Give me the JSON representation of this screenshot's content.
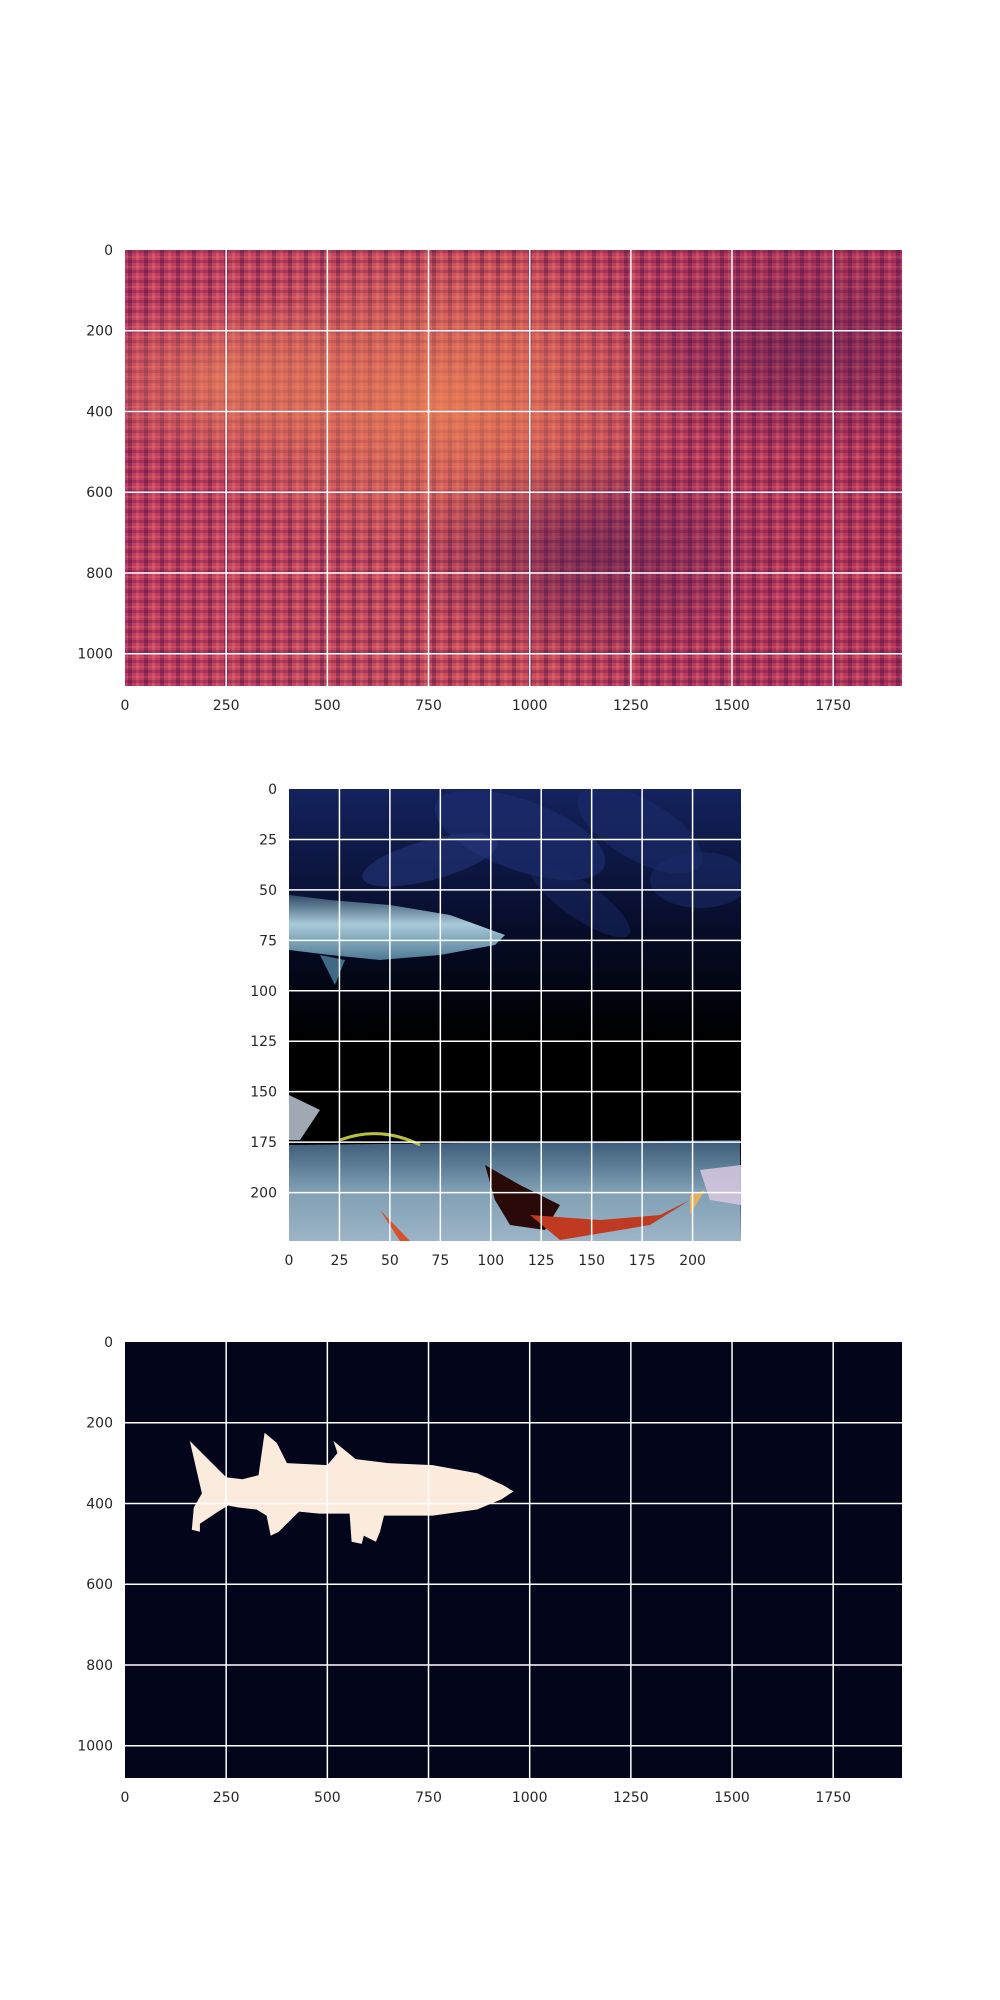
{
  "chart_data": [
    {
      "type": "heatmap",
      "title": "",
      "xlabel": "",
      "ylabel": "",
      "image_width": 1920,
      "image_height": 1080,
      "xlim": [
        0,
        1920
      ],
      "ylim": [
        1080,
        0
      ],
      "x_ticks": [
        0,
        250,
        500,
        750,
        1000,
        1250,
        1500,
        1750
      ],
      "y_ticks": [
        0,
        200,
        400,
        600,
        800,
        1000
      ],
      "x_tick_labels": [
        "0",
        "250",
        "500",
        "750",
        "1000",
        "1250",
        "1500",
        "1750"
      ],
      "y_tick_labels": [
        "0",
        "200",
        "400",
        "600",
        "800",
        "1000"
      ],
      "grid": true,
      "colormap": "rocket",
      "base_color": "#b8315e",
      "dark_color": "#5a1d52",
      "bright_color": "#f0a050"
    },
    {
      "type": "heatmap",
      "title": "",
      "xlabel": "",
      "ylabel": "",
      "image_width": 224,
      "image_height": 224,
      "xlim": [
        0,
        224
      ],
      "ylim": [
        224,
        0
      ],
      "x_ticks": [
        0,
        25,
        50,
        75,
        100,
        125,
        150,
        175,
        200
      ],
      "y_ticks": [
        0,
        25,
        50,
        75,
        100,
        125,
        150,
        175,
        200
      ],
      "x_tick_labels": [
        "0",
        "25",
        "50",
        "75",
        "100",
        "125",
        "150",
        "175",
        "200"
      ],
      "y_tick_labels": [
        "0",
        "25",
        "50",
        "75",
        "100",
        "125",
        "150",
        "175",
        "200"
      ],
      "grid": true,
      "colors": {
        "water_top": "#0d1a4a",
        "water_dark": "#000000",
        "fish_body": "#8fb8c8",
        "seabed": "#7f98a8",
        "red_fish": "#b8302a"
      }
    },
    {
      "type": "heatmap",
      "title": "",
      "xlabel": "",
      "ylabel": "",
      "image_width": 1920,
      "image_height": 1080,
      "xlim": [
        0,
        1920
      ],
      "ylim": [
        1080,
        0
      ],
      "x_ticks": [
        0,
        250,
        500,
        750,
        1000,
        1250,
        1500,
        1750
      ],
      "y_ticks": [
        0,
        200,
        400,
        600,
        800,
        1000
      ],
      "x_tick_labels": [
        "0",
        "250",
        "500",
        "750",
        "1000",
        "1250",
        "1500",
        "1750"
      ],
      "y_tick_labels": [
        "0",
        "200",
        "400",
        "600",
        "800",
        "1000"
      ],
      "grid": true,
      "background_color": "#03051a",
      "mask_color": "#faebdd",
      "mask_outline": [
        [
          160,
          245
        ],
        [
          215,
          300
        ],
        [
          250,
          335
        ],
        [
          290,
          340
        ],
        [
          330,
          330
        ],
        [
          345,
          225
        ],
        [
          375,
          250
        ],
        [
          400,
          300
        ],
        [
          500,
          305
        ],
        [
          525,
          275
        ],
        [
          515,
          245
        ],
        [
          570,
          290
        ],
        [
          650,
          300
        ],
        [
          760,
          305
        ],
        [
          870,
          325
        ],
        [
          935,
          355
        ],
        [
          960,
          370
        ],
        [
          930,
          390
        ],
        [
          870,
          415
        ],
        [
          760,
          430
        ],
        [
          640,
          430
        ],
        [
          630,
          470
        ],
        [
          620,
          495
        ],
        [
          590,
          480
        ],
        [
          585,
          500
        ],
        [
          560,
          495
        ],
        [
          555,
          425
        ],
        [
          480,
          425
        ],
        [
          430,
          420
        ],
        [
          380,
          470
        ],
        [
          360,
          480
        ],
        [
          350,
          430
        ],
        [
          325,
          415
        ],
        [
          280,
          410
        ],
        [
          255,
          405
        ],
        [
          230,
          420
        ],
        [
          185,
          450
        ],
        [
          185,
          470
        ],
        [
          165,
          465
        ],
        [
          170,
          410
        ],
        [
          190,
          375
        ],
        [
          175,
          310
        ],
        [
          160,
          245
        ]
      ]
    }
  ]
}
